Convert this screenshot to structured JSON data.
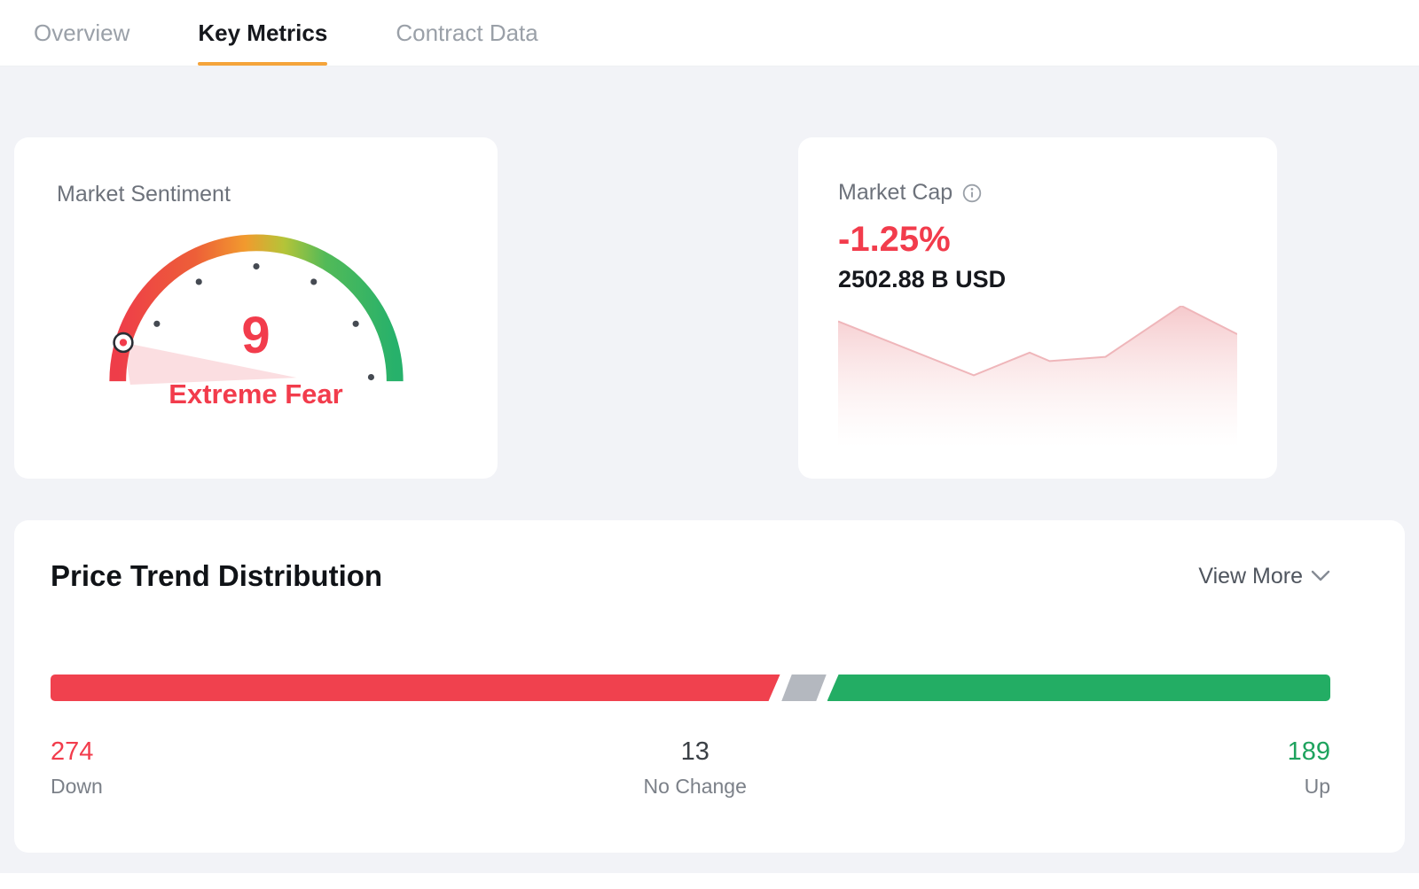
{
  "tabs": {
    "items": [
      {
        "label": "Overview",
        "active": false
      },
      {
        "label": "Key Metrics",
        "active": true
      },
      {
        "label": "Contract Data",
        "active": false
      }
    ]
  },
  "sentiment": {
    "title": "Market Sentiment",
    "value": 9,
    "max": 100,
    "label": "Extreme Fear"
  },
  "market_cap": {
    "title": "Market Cap",
    "change": "-1.25%",
    "value": "2502.88 B USD"
  },
  "price_trend": {
    "title": "Price Trend Distribution",
    "view_more": "View More",
    "segments": [
      {
        "name": "Down",
        "value": 274,
        "bar_color": "#f0414e",
        "text_color": "#f23c4c"
      },
      {
        "name": "No Change",
        "value": 13,
        "bar_color": "#b4b8bf",
        "text_color": "#3b4046"
      },
      {
        "name": "Up",
        "value": 189,
        "bar_color": "#23ad64",
        "text_color": "#1ea35e"
      }
    ]
  },
  "colors": {
    "accent_orange": "#f5a43b",
    "red": "#f23c4c",
    "green": "#23ad64",
    "gray": "#b4b8bf"
  },
  "chart_data": [
    {
      "type": "gauge",
      "title": "Market Sentiment",
      "value": 9,
      "range": [
        0,
        100
      ],
      "label": "Extreme Fear",
      "scale": [
        "red",
        "orange",
        "green"
      ]
    },
    {
      "type": "area",
      "title": "Market Cap sparkline",
      "change": "-1.25%",
      "value_text": "2502.88 B USD",
      "points_norm": [
        [
          0,
          0.11
        ],
        [
          0.34,
          0.49
        ],
        [
          0.48,
          0.33
        ],
        [
          0.53,
          0.39
        ],
        [
          0.67,
          0.36
        ],
        [
          0.86,
          0.0
        ],
        [
          1,
          0.2
        ]
      ]
    },
    {
      "type": "bar",
      "title": "Price Trend Distribution",
      "categories": [
        "Down",
        "No Change",
        "Up"
      ],
      "values": [
        274,
        13,
        189
      ]
    }
  ]
}
